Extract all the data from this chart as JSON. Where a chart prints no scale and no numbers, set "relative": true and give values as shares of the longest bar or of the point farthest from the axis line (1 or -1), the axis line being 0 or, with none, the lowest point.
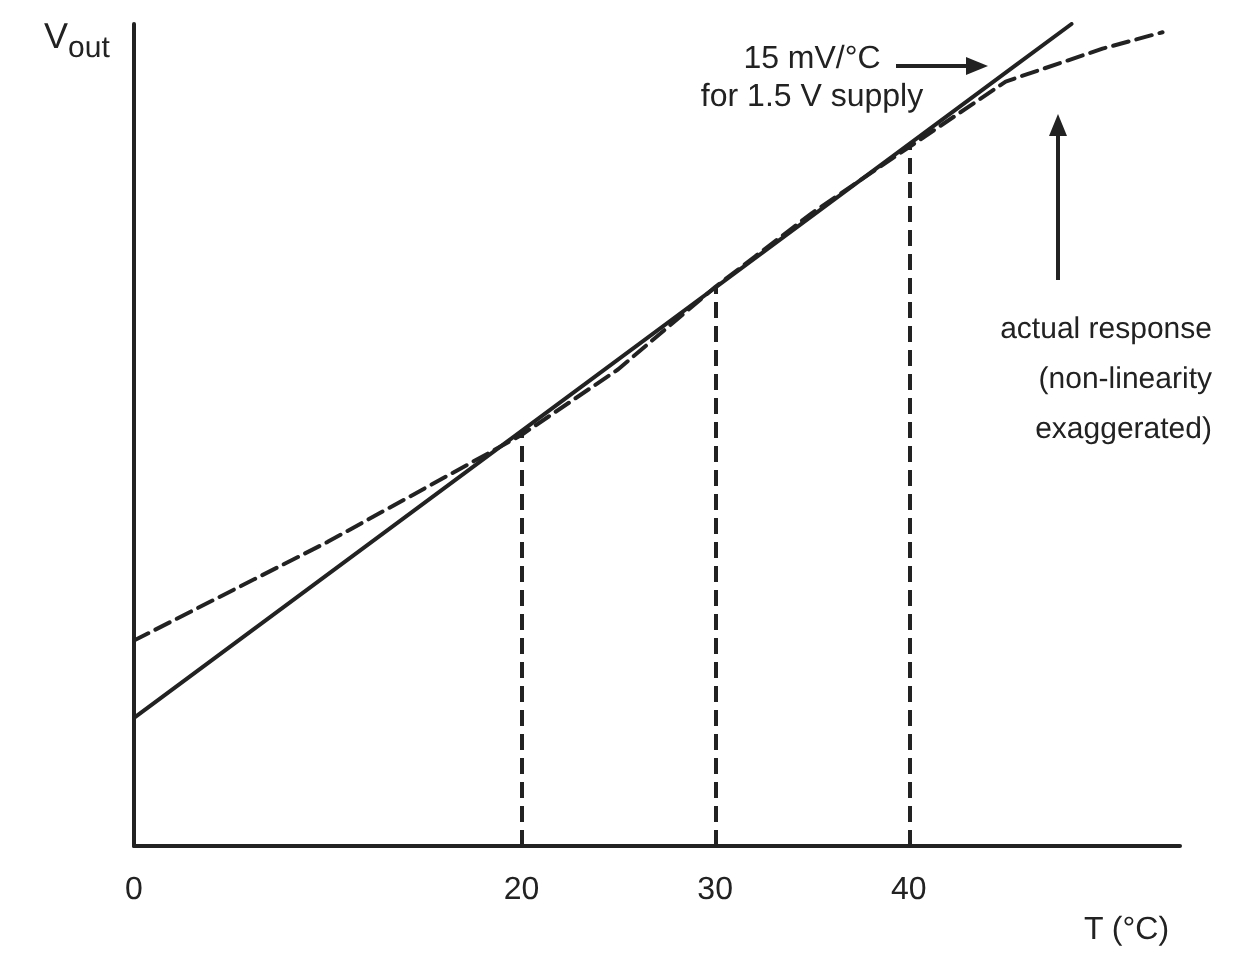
{
  "chart_data": {
    "type": "line",
    "relative": true,
    "ylabel": "V$_{out}$",
    "xlabel": "T (°C)",
    "xlim": [
      0,
      54
    ],
    "xticks": [
      0,
      20,
      30,
      40
    ],
    "series": [
      {
        "color": "#222222",
        "line_style": "solid",
        "x": [
          0,
          48.4
        ],
        "values": [
          0.156,
          1.0
        ]
      },
      {
        "color": "#222222",
        "line_style": "dashed",
        "x": [
          0,
          10,
          20,
          25,
          30,
          35,
          40,
          45,
          50,
          53.1
        ],
        "values": [
          0.25,
          0.37,
          0.5,
          0.58,
          0.68,
          0.77,
          0.85,
          0.93,
          0.97,
          0.99
        ]
      }
    ],
    "ref_lines": [
      {
        "axis": "x",
        "value": 20,
        "line_style": "dashed"
      },
      {
        "axis": "x",
        "value": 30,
        "line_style": "dashed"
      },
      {
        "axis": "x",
        "value": 40,
        "line_style": "dashed"
      }
    ],
    "annotations": [
      "15 mV/°C\nfor 1.5 V supply",
      "actual response\n(non-linearity\nexaggerated)"
    ],
    "grid": false,
    "legend": false,
    "marker": "none"
  }
}
